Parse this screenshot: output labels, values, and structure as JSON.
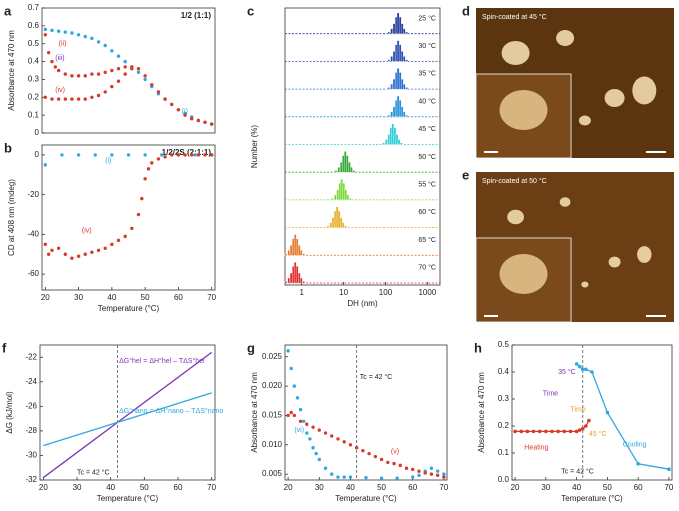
{
  "chart_data": [
    {
      "type": "scatter",
      "panel": "a",
      "title": "1/2 (1:1)",
      "y_label": "Absorbance at 470 nm",
      "xlim": [
        19,
        71
      ],
      "ylim": [
        0,
        0.7
      ],
      "yticks": [
        0,
        0.1,
        0.2,
        0.3,
        0.4,
        0.5,
        0.6,
        0.7
      ],
      "series": [
        {
          "color": "#2fa8e0",
          "x": [
            20,
            22,
            24,
            26,
            28,
            30,
            32,
            34,
            36,
            38,
            40,
            42,
            44,
            46,
            48,
            50,
            52,
            54,
            56,
            58,
            60,
            62,
            64,
            66,
            68,
            70
          ],
          "values": [
            0.58,
            0.575,
            0.57,
            0.565,
            0.56,
            0.55,
            0.54,
            0.53,
            0.51,
            0.49,
            0.46,
            0.43,
            0.4,
            0.37,
            0.34,
            0.3,
            0.26,
            0.22,
            0.19,
            0.16,
            0.13,
            0.11,
            0.09,
            0.07,
            0.06,
            0.05
          ]
        },
        {
          "color": "#d83a2a",
          "x": [
            20,
            21,
            22,
            23,
            24,
            26,
            28,
            30,
            32,
            34,
            36,
            38,
            40,
            42,
            44,
            46,
            48,
            50,
            52,
            54,
            56,
            58,
            60,
            62,
            64,
            66,
            68,
            70
          ],
          "values": [
            0.55,
            0.45,
            0.4,
            0.37,
            0.35,
            0.33,
            0.32,
            0.32,
            0.32,
            0.33,
            0.33,
            0.34,
            0.35,
            0.36,
            0.37,
            0.37,
            0.36,
            0.32,
            0.27,
            0.23,
            0.19,
            0.16,
            0.13,
            0.1,
            0.08,
            0.07,
            0.06,
            0.05
          ]
        },
        {
          "color": "#d83a2a",
          "x": [
            20,
            22,
            24,
            26,
            28,
            30,
            32,
            34,
            36,
            38,
            40,
            42,
            44,
            46
          ],
          "values": [
            0.2,
            0.19,
            0.19,
            0.19,
            0.19,
            0.19,
            0.19,
            0.2,
            0.21,
            0.23,
            0.26,
            0.29,
            0.33,
            0.36
          ]
        }
      ],
      "annotations": [
        {
          "text": "(i)",
          "x": 61,
          "y": 0.12,
          "color": "#2fa8e0"
        },
        {
          "text": "(ii)",
          "x": 24,
          "y": 0.5,
          "color": "#d83a2a"
        },
        {
          "text": "(iii)",
          "x": 23,
          "y": 0.42,
          "color": "#7a35b8"
        },
        {
          "text": "(iv)",
          "x": 23,
          "y": 0.24,
          "color": "#d83a2a"
        }
      ]
    },
    {
      "type": "scatter",
      "panel": "b",
      "title": "1/2/2S (2:1:1)",
      "y_label": "CD at 408 nm (mdeg)",
      "x_label": "Temperature (°C)",
      "xlim": [
        19,
        71
      ],
      "xticks": [
        20,
        30,
        40,
        50,
        60,
        70
      ],
      "ylim": [
        -68,
        5
      ],
      "yticks": [
        -60,
        -40,
        -20,
        0
      ],
      "series": [
        {
          "color": "#2fa8e0",
          "x": [
            20,
            25,
            30,
            35,
            40,
            45,
            50,
            55,
            60,
            65,
            70
          ],
          "values": [
            -5,
            0,
            0,
            0,
            0,
            0,
            0,
            0,
            0,
            0,
            0
          ]
        },
        {
          "color": "#d83a2a",
          "x": [
            20,
            21,
            22,
            24,
            26,
            28,
            30,
            32,
            34,
            36,
            38,
            40,
            42,
            44,
            46,
            48,
            49,
            50,
            51,
            52,
            54,
            56,
            58,
            60,
            62,
            64,
            66,
            68,
            70
          ],
          "values": [
            -45,
            -50,
            -48,
            -47,
            -50,
            -52,
            -51,
            -50,
            -49,
            -48,
            -47,
            -45,
            -43,
            -41,
            -37,
            -30,
            -22,
            -12,
            -7,
            -4,
            -2,
            -1,
            0,
            0,
            0,
            0,
            0,
            0,
            0
          ]
        }
      ],
      "annotations": [
        {
          "text": "(i)",
          "x": 38,
          "y": -3,
          "color": "#2fa8e0"
        },
        {
          "text": "(iv)",
          "x": 31,
          "y": -38,
          "color": "#d83a2a"
        }
      ]
    },
    {
      "type": "bar",
      "panel": "c",
      "y_label": "Number (%)",
      "x_label": "DH (nm)",
      "xlog": true,
      "xlim": [
        0.4,
        2000
      ],
      "xticks": [
        1,
        10,
        100,
        1000
      ],
      "ylim": [
        0,
        30
      ],
      "series": [
        {
          "name": "25 °C",
          "color": "#2a3c9c",
          "x": [
            120,
            140,
            160,
            180,
            200,
            224,
            250,
            280,
            320
          ],
          "values": [
            2,
            6,
            12,
            20,
            25,
            20,
            12,
            6,
            2
          ]
        },
        {
          "name": "30 °C",
          "color": "#2e50b5",
          "x": [
            120,
            140,
            160,
            180,
            200,
            224,
            250,
            280,
            320
          ],
          "values": [
            2,
            6,
            12,
            20,
            25,
            20,
            12,
            6,
            2
          ]
        },
        {
          "name": "35 °C",
          "color": "#2b6fd0",
          "x": [
            120,
            140,
            160,
            180,
            200,
            224,
            250,
            280,
            320
          ],
          "values": [
            2,
            6,
            12,
            20,
            25,
            20,
            12,
            6,
            2
          ]
        },
        {
          "name": "40 °C",
          "color": "#2a93d8",
          "x": [
            120,
            140,
            160,
            180,
            200,
            224,
            250,
            280,
            320
          ],
          "values": [
            2,
            6,
            12,
            20,
            25,
            20,
            12,
            6,
            2
          ]
        },
        {
          "name": "45 °C",
          "color": "#2fd0d8",
          "x": [
            90,
            105,
            120,
            135,
            150,
            168,
            188,
            210,
            240
          ],
          "values": [
            2,
            6,
            12,
            20,
            25,
            20,
            12,
            6,
            2
          ]
        },
        {
          "name": "50 °C",
          "color": "#3aa83a",
          "x": [
            6.6,
            7.7,
            8.8,
            9.9,
            11,
            12.3,
            13.8,
            15.4,
            17.6
          ],
          "values": [
            2,
            6,
            12,
            20,
            25,
            20,
            12,
            6,
            2
          ]
        },
        {
          "name": "55 °C",
          "color": "#7ed83a",
          "x": [
            5.4,
            6.3,
            7.2,
            8.1,
            9,
            10.1,
            11.3,
            12.6,
            14.4
          ],
          "values": [
            2,
            6,
            12,
            20,
            25,
            20,
            12,
            6,
            2
          ]
        },
        {
          "name": "60 °C",
          "color": "#e8b030",
          "x": [
            4.2,
            4.9,
            5.6,
            6.3,
            7,
            7.8,
            8.8,
            9.8,
            11.2
          ],
          "values": [
            2,
            6,
            12,
            20,
            25,
            20,
            12,
            6,
            2
          ]
        },
        {
          "name": "65 °C",
          "color": "#e87a30",
          "x": [
            0.42,
            0.49,
            0.56,
            0.63,
            0.7,
            0.78,
            0.88,
            0.98,
            1.12
          ],
          "values": [
            2,
            6,
            12,
            20,
            25,
            20,
            12,
            6,
            2
          ]
        },
        {
          "name": "70 °C",
          "color": "#e03030",
          "x": [
            0.42,
            0.49,
            0.56,
            0.63,
            0.7,
            0.78,
            0.88,
            0.98,
            1.12
          ],
          "values": [
            2,
            6,
            12,
            20,
            25,
            20,
            12,
            6,
            2
          ]
        }
      ]
    },
    {
      "type": "line",
      "panel": "f",
      "y_label": "ΔG (kJ/mol)",
      "x_label": "Temperature (°C)",
      "xlim": [
        19,
        71
      ],
      "xticks": [
        20,
        30,
        40,
        50,
        60,
        70
      ],
      "ylim": [
        -32,
        -21
      ],
      "yticks": [
        -32,
        -30,
        -28,
        -26,
        -24,
        -22
      ],
      "vline": 42,
      "series": [
        {
          "color": "#7a35b8",
          "x": [
            20,
            70
          ],
          "values": [
            -31.8,
            -21.6
          ]
        },
        {
          "color": "#2fa8e0",
          "x": [
            20,
            70
          ],
          "values": [
            -29.2,
            -24.9
          ]
        }
      ],
      "annotations": [
        {
          "text": "ΔG°hel = ΔH°hel – TΔS°hel",
          "x": 42.5,
          "y": -22.3,
          "color": "#7a35b8"
        },
        {
          "text": "ΔG°nano = ΔH°nano – TΔS°nano",
          "x": 42.5,
          "y": -26.4,
          "color": "#2fa8e0"
        },
        {
          "text": "Tc = 42 °C",
          "x": 30,
          "y": -31.4,
          "color": "#222222"
        }
      ]
    },
    {
      "type": "scatter",
      "panel": "g",
      "y_label": "Absorbance at 470 nm",
      "x_label": "Temperature (°C)",
      "xlim": [
        19,
        71
      ],
      "xticks": [
        20,
        30,
        40,
        50,
        60,
        70
      ],
      "ylim": [
        0.004,
        0.027
      ],
      "vline": 42,
      "yticks": [
        0.005,
        {
          "value": 0.01,
          "label": "0.010"
        },
        0.015,
        {
          "value": 0.02,
          "label": "0.020"
        },
        0.025
      ],
      "series": [
        {
          "color": "#2fa8e0",
          "x": [
            20,
            21,
            22,
            23,
            24,
            25,
            26,
            27,
            28,
            29,
            30,
            32,
            34,
            36,
            38,
            40,
            45,
            50,
            55,
            60,
            62,
            64,
            66,
            68,
            70
          ],
          "values": [
            0.026,
            0.023,
            0.02,
            0.018,
            0.016,
            0.014,
            0.012,
            0.011,
            0.0095,
            0.0085,
            0.0075,
            0.006,
            0.005,
            0.0045,
            0.0045,
            0.0045,
            0.0044,
            0.0043,
            0.0043,
            0.0045,
            0.0048,
            0.0055,
            0.006,
            0.0055,
            0.005
          ]
        },
        {
          "color": "#d83a2a",
          "x": [
            20,
            21,
            22,
            24,
            26,
            28,
            30,
            32,
            34,
            36,
            38,
            40,
            42,
            44,
            46,
            48,
            50,
            52,
            54,
            56,
            58,
            60,
            62,
            64,
            66,
            68,
            70
          ],
          "values": [
            0.015,
            0.0155,
            0.015,
            0.014,
            0.0135,
            0.013,
            0.0125,
            0.012,
            0.0115,
            0.011,
            0.0105,
            0.01,
            0.0095,
            0.009,
            0.0085,
            0.008,
            0.0075,
            0.007,
            0.0068,
            0.0065,
            0.006,
            0.0058,
            0.0055,
            0.0052,
            0.005,
            0.0048,
            0.0045
          ]
        }
      ],
      "annotations": [
        {
          "text": "(vi)",
          "x": 22,
          "y": 0.0125,
          "color": "#2fa8e0"
        },
        {
          "text": "(v)",
          "x": 53,
          "y": 0.0088,
          "color": "#d83a2a"
        },
        {
          "text": "Tc = 42 °C",
          "x": 43,
          "y": 0.0215,
          "color": "#222222"
        }
      ]
    },
    {
      "type": "line",
      "panel": "h",
      "markers": true,
      "y_label": "Absorbance at 470 nm",
      "x_label": "Temperature (°C)",
      "xlim": [
        19,
        71
      ],
      "xticks": [
        20,
        30,
        40,
        50,
        60,
        70
      ],
      "ylim": [
        0,
        0.5
      ],
      "vline": 42,
      "yticks": [
        {
          "value": 0,
          "label": "0.0"
        },
        0.1,
        0.2,
        0.3,
        0.4,
        0.5
      ],
      "series": [
        {
          "color": "#d83a2a",
          "x": [
            20,
            22,
            24,
            26,
            28,
            30,
            32,
            34,
            36,
            38,
            40,
            41,
            42,
            43,
            44
          ],
          "values": [
            0.18,
            0.18,
            0.18,
            0.18,
            0.18,
            0.18,
            0.18,
            0.18,
            0.18,
            0.18,
            0.18,
            0.185,
            0.19,
            0.2,
            0.22
          ]
        },
        {
          "color": "#2fa8e0",
          "x": [
            40,
            41,
            42,
            43,
            45,
            50,
            60,
            70
          ],
          "values": [
            0.43,
            0.42,
            0.41,
            0.41,
            0.4,
            0.25,
            0.06,
            0.04
          ]
        }
      ],
      "annotations": [
        {
          "text": "Heating",
          "x": 23,
          "y": 0.12,
          "color": "#d83a2a"
        },
        {
          "text": "Cooling",
          "x": 55,
          "y": 0.13,
          "color": "#2fa8e0"
        },
        {
          "text": "Time",
          "x": 29,
          "y": 0.32,
          "color": "#7a35b8"
        },
        {
          "text": "35 °C",
          "x": 34,
          "y": 0.4,
          "color": "#7a35b8"
        },
        {
          "text": "Time",
          "x": 38,
          "y": 0.26,
          "color": "#e8a020"
        },
        {
          "text": "45 °C",
          "x": 44,
          "y": 0.17,
          "color": "#e8a020"
        },
        {
          "text": "Tc = 42 °C",
          "x": 35,
          "y": 0.03,
          "color": "#222222"
        }
      ]
    }
  ],
  "images": [
    {
      "panel": "d",
      "caption": "Spin-coated at 45 °C"
    },
    {
      "panel": "e",
      "caption": "Spin-coated at 50 °C"
    }
  ]
}
